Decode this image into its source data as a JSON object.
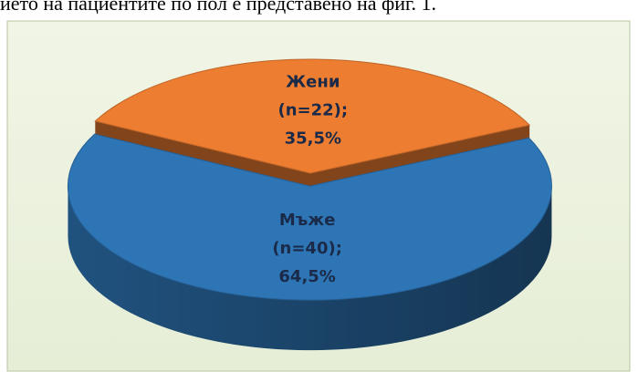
{
  "text": "ието на пациентите по пол е представено на фиг. 1.",
  "chart_data": {
    "type": "pie",
    "categories": [
      "Мъже",
      "Жени"
    ],
    "values": [
      64.5,
      35.5
    ],
    "value_labels": [
      "64,5%",
      "35,5%"
    ],
    "count_labels": [
      "(n=40);",
      "(n=22);"
    ],
    "colors": [
      "#2e75b6",
      "#ed7d31"
    ]
  }
}
